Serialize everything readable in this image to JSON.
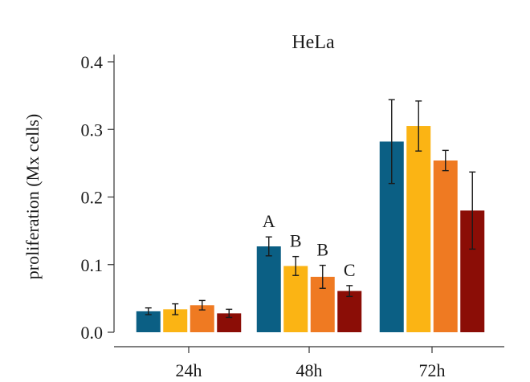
{
  "chart_data": {
    "type": "bar",
    "title": "HeLa",
    "xlabel": "",
    "ylabel": "proliferation (Mx cells)",
    "categories": [
      "24h",
      "48h",
      "72h"
    ],
    "ylim": [
      0,
      0.4
    ],
    "yticks": [
      "0.0",
      "0.1",
      "0.2",
      "0.3",
      "0.4"
    ],
    "grid": false,
    "legend": "none",
    "colors": [
      "#0b5f84",
      "#fbb414",
      "#ef7a22",
      "#8b0d06"
    ],
    "series": [
      {
        "values": [
          0.031,
          0.127,
          0.282
        ],
        "errors": [
          0.005,
          0.014,
          0.062
        ],
        "color": "#0b5f84"
      },
      {
        "values": [
          0.034,
          0.098,
          0.305
        ],
        "errors": [
          0.008,
          0.014,
          0.037
        ],
        "color": "#fbb414"
      },
      {
        "values": [
          0.04,
          0.082,
          0.254
        ],
        "errors": [
          0.007,
          0.017,
          0.015
        ],
        "color": "#ef7a22"
      },
      {
        "values": [
          0.028,
          0.061,
          0.18
        ],
        "errors": [
          0.006,
          0.008,
          0.057
        ],
        "color": "#8b0d06"
      }
    ],
    "annotations": [
      {
        "category": "48h",
        "series": 0,
        "text": "A"
      },
      {
        "category": "48h",
        "series": 1,
        "text": "B"
      },
      {
        "category": "48h",
        "series": 2,
        "text": "B"
      },
      {
        "category": "48h",
        "series": 3,
        "text": "C"
      }
    ]
  }
}
